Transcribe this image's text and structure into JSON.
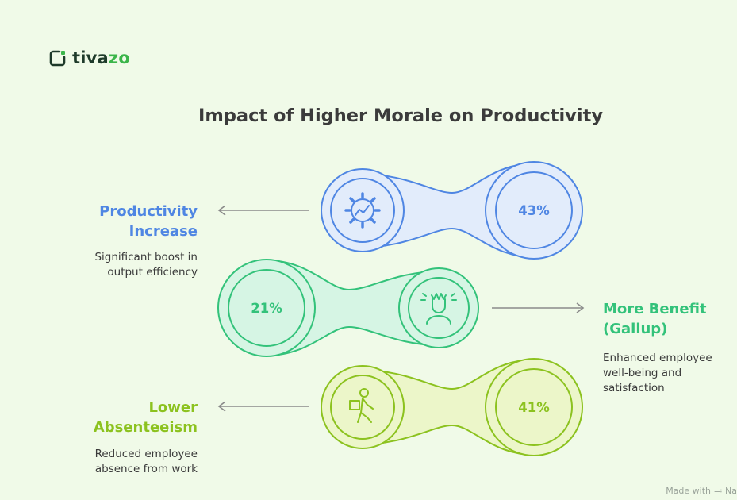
{
  "brand": {
    "name_prefix": "tiva",
    "name_suffix": "zo"
  },
  "title": "Impact of Higher Morale on Productivity",
  "items": [
    {
      "heading_line1": "Productivity",
      "heading_line2": "Increase",
      "value": "43%",
      "description_line1": "Significant boost in",
      "description_line2": "output efficiency",
      "icon": "gear-chart-icon",
      "color": "#4f86e3"
    },
    {
      "heading_line1": "More Benefit",
      "heading_line2": "(Gallup)",
      "value": "21%",
      "description_line1": "Enhanced employee",
      "description_line2": "well-being and",
      "description_line3": "satisfaction",
      "icon": "happy-employee-icon",
      "color": "#33c27a"
    },
    {
      "heading_line1": "Lower",
      "heading_line2": "Absenteeism",
      "value": "41%",
      "description_line1": "Reduced employee",
      "description_line2": "absence from work",
      "icon": "person-walking-icon",
      "color": "#8cc21f"
    }
  ],
  "footer": {
    "made_with": "Made with",
    "brand_fragment": "Na"
  }
}
